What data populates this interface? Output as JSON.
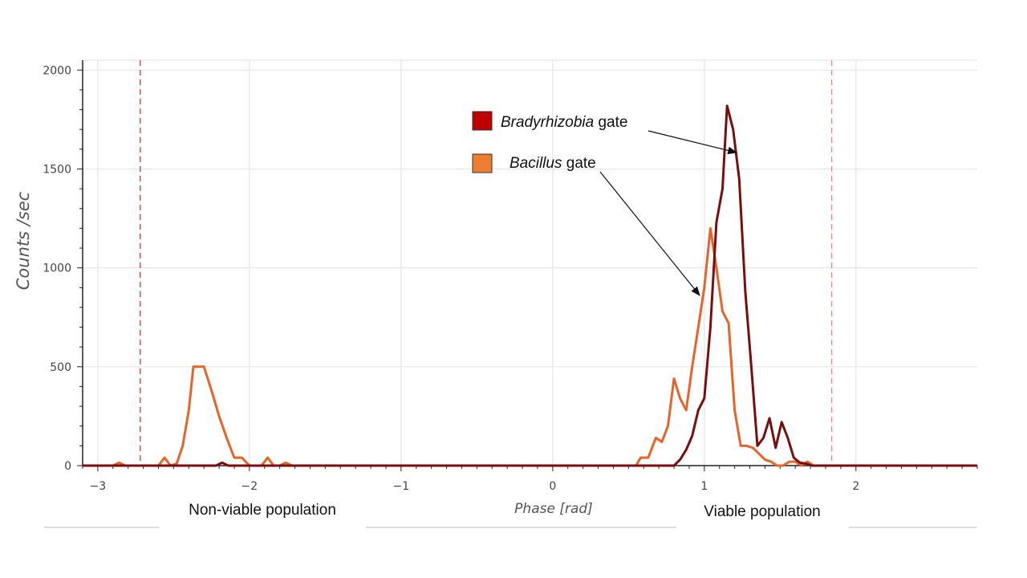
{
  "chart_data": {
    "type": "line",
    "xlabel": "Phase [rad]",
    "ylabel": "Counts /sec",
    "xlim": [
      -3.1,
      2.8
    ],
    "ylim": [
      0,
      2050
    ],
    "xticks": [
      -3,
      -2,
      -1,
      0,
      1,
      2
    ],
    "yticks": [
      0,
      500,
      1000,
      1500,
      2000
    ],
    "x_tick_labels": [
      "−3",
      "−2",
      "−1",
      "0",
      "1",
      "2"
    ],
    "y_tick_labels": [
      "0",
      "500",
      "1000",
      "1500",
      "2000"
    ],
    "grid": true,
    "gate_lines": [
      -2.72,
      1.84
    ],
    "series": [
      {
        "name": "Bacillus gate",
        "color": "#e8632a",
        "points": [
          [
            -3.1,
            0
          ],
          [
            -2.9,
            0
          ],
          [
            -2.86,
            15
          ],
          [
            -2.82,
            0
          ],
          [
            -2.6,
            0
          ],
          [
            -2.56,
            40
          ],
          [
            -2.52,
            0
          ],
          [
            -2.48,
            10
          ],
          [
            -2.44,
            100
          ],
          [
            -2.4,
            280
          ],
          [
            -2.37,
            500
          ],
          [
            -2.3,
            500
          ],
          [
            -2.25,
            380
          ],
          [
            -2.2,
            250
          ],
          [
            -2.15,
            140
          ],
          [
            -2.1,
            40
          ],
          [
            -2.05,
            40
          ],
          [
            -2.0,
            0
          ],
          [
            -1.92,
            0
          ],
          [
            -1.88,
            40
          ],
          [
            -1.84,
            0
          ],
          [
            -1.8,
            0
          ],
          [
            -1.76,
            15
          ],
          [
            -1.72,
            0
          ],
          [
            0.55,
            0
          ],
          [
            0.58,
            40
          ],
          [
            0.63,
            40
          ],
          [
            0.68,
            140
          ],
          [
            0.72,
            120
          ],
          [
            0.76,
            200
          ],
          [
            0.8,
            440
          ],
          [
            0.84,
            340
          ],
          [
            0.88,
            280
          ],
          [
            0.92,
            500
          ],
          [
            0.96,
            700
          ],
          [
            1.0,
            900
          ],
          [
            1.04,
            1200
          ],
          [
            1.08,
            1000
          ],
          [
            1.12,
            780
          ],
          [
            1.16,
            720
          ],
          [
            1.2,
            280
          ],
          [
            1.24,
            100
          ],
          [
            1.28,
            100
          ],
          [
            1.32,
            90
          ],
          [
            1.36,
            60
          ],
          [
            1.4,
            30
          ],
          [
            1.44,
            20
          ],
          [
            1.48,
            0
          ],
          [
            1.52,
            0
          ],
          [
            1.56,
            20
          ],
          [
            1.6,
            20
          ],
          [
            1.64,
            0
          ],
          [
            1.68,
            20
          ],
          [
            1.72,
            0
          ],
          [
            2.8,
            0
          ]
        ]
      },
      {
        "name": "Bradyrhizobia gate",
        "color": "#7a0e0e",
        "points": [
          [
            -3.1,
            0
          ],
          [
            -2.22,
            0
          ],
          [
            -2.18,
            15
          ],
          [
            -2.14,
            0
          ],
          [
            0.8,
            0
          ],
          [
            0.84,
            30
          ],
          [
            0.88,
            80
          ],
          [
            0.92,
            150
          ],
          [
            0.96,
            280
          ],
          [
            1.0,
            340
          ],
          [
            1.04,
            700
          ],
          [
            1.08,
            1230
          ],
          [
            1.12,
            1400
          ],
          [
            1.15,
            1820
          ],
          [
            1.19,
            1700
          ],
          [
            1.23,
            1450
          ],
          [
            1.27,
            880
          ],
          [
            1.31,
            500
          ],
          [
            1.35,
            100
          ],
          [
            1.39,
            140
          ],
          [
            1.43,
            240
          ],
          [
            1.47,
            90
          ],
          [
            1.51,
            220
          ],
          [
            1.55,
            140
          ],
          [
            1.59,
            40
          ],
          [
            1.63,
            15
          ],
          [
            1.67,
            10
          ],
          [
            1.71,
            0
          ],
          [
            2.8,
            0
          ]
        ]
      }
    ],
    "legend": [
      {
        "label_italic": "Bradyrhizobia",
        "label_rest": " gate",
        "swatch_color": "#c00000"
      },
      {
        "label_italic": "Bacillus",
        "label_rest": " gate",
        "swatch_color": "#ed7d31"
      }
    ],
    "annotations": [
      "Non-viable population",
      "Viable population"
    ]
  }
}
